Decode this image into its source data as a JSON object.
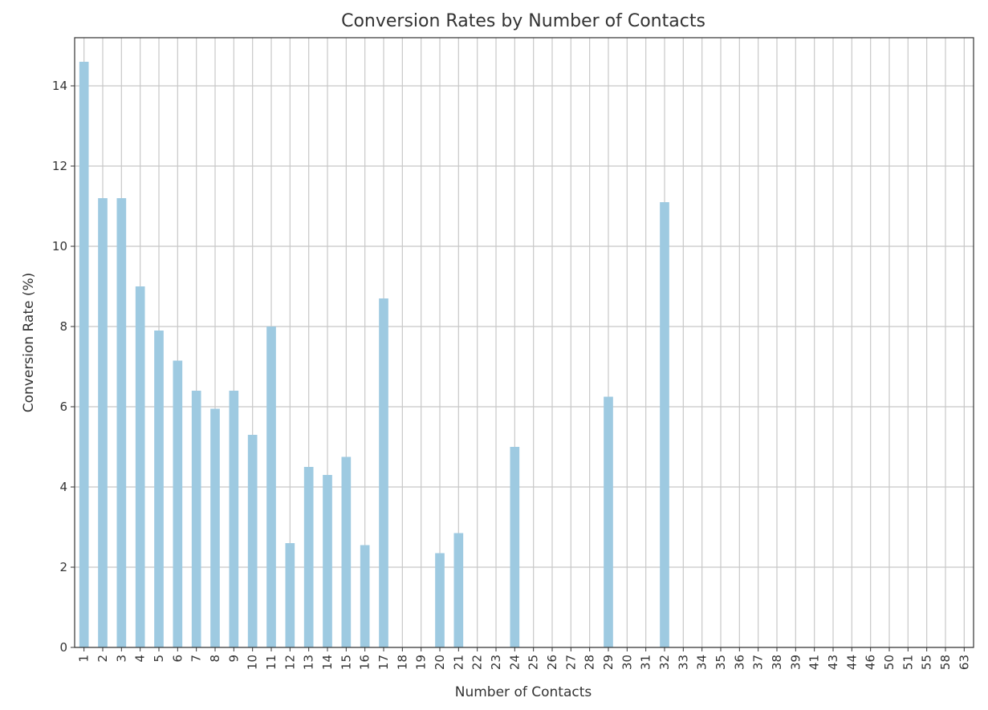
{
  "chart_data": {
    "type": "bar",
    "title": "Conversion Rates by Number of Contacts",
    "xlabel": "Number of Contacts",
    "ylabel": "Conversion Rate (%)",
    "ylim": [
      0,
      15.2
    ],
    "yticks": [
      0,
      2,
      4,
      6,
      8,
      10,
      12,
      14
    ],
    "grid": true,
    "bar_color": "#9ecae1",
    "categories": [
      "1",
      "2",
      "3",
      "4",
      "5",
      "6",
      "7",
      "8",
      "9",
      "10",
      "11",
      "12",
      "13",
      "14",
      "15",
      "16",
      "17",
      "18",
      "19",
      "20",
      "21",
      "22",
      "23",
      "24",
      "25",
      "26",
      "27",
      "28",
      "29",
      "30",
      "31",
      "32",
      "33",
      "34",
      "35",
      "36",
      "37",
      "38",
      "39",
      "41",
      "43",
      "44",
      "46",
      "50",
      "51",
      "55",
      "58",
      "63"
    ],
    "values": [
      14.6,
      11.2,
      11.2,
      9.0,
      7.9,
      7.15,
      6.4,
      5.95,
      6.4,
      5.3,
      8.0,
      2.6,
      4.5,
      4.3,
      4.75,
      2.55,
      8.7,
      0,
      0,
      2.35,
      2.85,
      0,
      0,
      5.0,
      0,
      0,
      0,
      0,
      6.25,
      0,
      0,
      11.1,
      0,
      0,
      0,
      0,
      0,
      0,
      0,
      0,
      0,
      0,
      0,
      0,
      0,
      0,
      0,
      0
    ]
  }
}
